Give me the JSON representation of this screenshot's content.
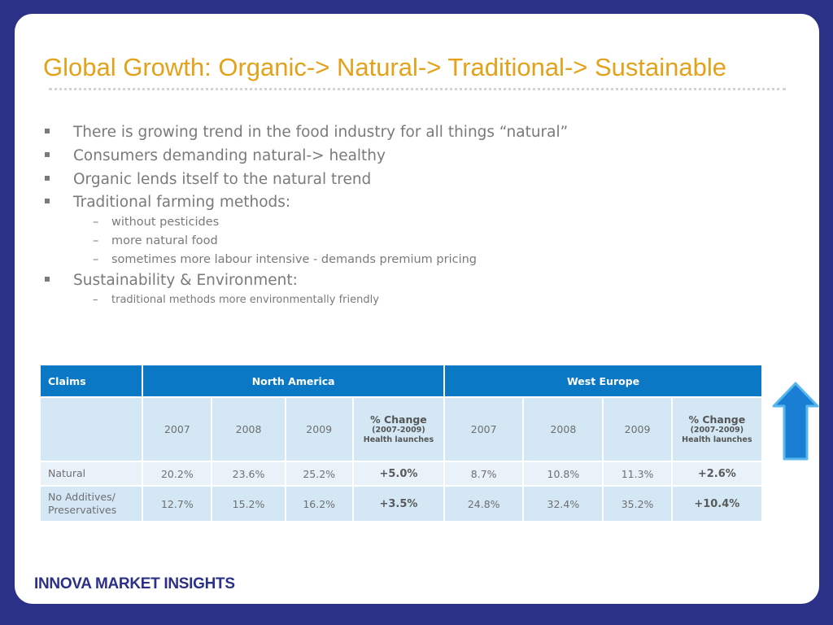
{
  "slide": {
    "title": "Global Growth: Organic-> Natural-> Traditional-> Sustainable",
    "bullets": [
      {
        "text": "There is growing trend in the food industry for all things “natural”"
      },
      {
        "text": "Consumers demanding natural-> healthy"
      },
      {
        "text": "Organic lends itself to the natural trend"
      },
      {
        "text": "Traditional farming methods:"
      },
      {
        "text": "without pesticides"
      },
      {
        "text": "more natural food"
      },
      {
        "text": "sometimes more labour intensive - demands premium pricing"
      },
      {
        "text": "Sustainability & Environment:"
      },
      {
        "text": "traditional methods more environmentally friendly"
      }
    ],
    "bullet_marker": "▪",
    "dash_marker": "–"
  },
  "table": {
    "headers": {
      "claims": "Claims",
      "north_america": "North America",
      "west_europe": "West Europe"
    },
    "subheaders": {
      "y2007": "2007",
      "y2008": "2008",
      "y2009": "2009",
      "pct_change": "% Change",
      "pct_range": "(2007-2009)",
      "pct_note": "Health launches"
    },
    "rows": [
      {
        "label": "Natural",
        "na": [
          "20.2%",
          "23.6%",
          "25.2%",
          "+5.0%"
        ],
        "we": [
          "8.7%",
          "10.8%",
          "11.3%",
          "+2.6%"
        ]
      },
      {
        "label": "No Additives/ Preservatives",
        "na": [
          "12.7%",
          "15.2%",
          "16.2%",
          "+3.5%"
        ],
        "we": [
          "24.8%",
          "32.4%",
          "35.2%",
          "+10.4%"
        ]
      }
    ]
  },
  "icons": {
    "arrow": "up-arrow-icon"
  },
  "footer": {
    "brand": "INNOVA MARKET INSIGHTS"
  },
  "colors": {
    "background": "#2b3186",
    "title": "#e3a21a",
    "table_header": "#0a78c4",
    "table_row_light": "#e9f2f9",
    "table_row_dark": "#d3e7f4",
    "arrow": "#1a7fd4"
  }
}
